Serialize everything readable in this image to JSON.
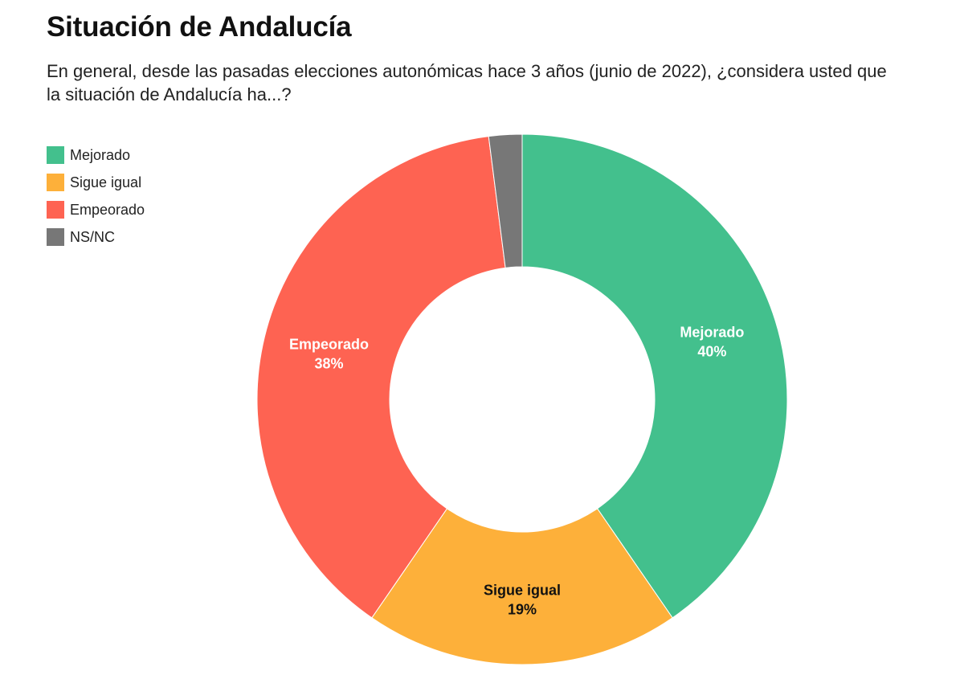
{
  "title": "Situación de Andalucía",
  "subtitle": "En general, desde las pasadas elecciones autonómicas hace 3 años (junio de 2022), ¿considera usted que la situación de Andalucía ha...?",
  "chart_data": {
    "type": "pie",
    "donut": true,
    "legend_position": "top-left",
    "slices": [
      {
        "label": "Mejorado",
        "value": 40,
        "display": "40%",
        "color": "#43c08d",
        "label_color": "#ffffff",
        "show_label": true
      },
      {
        "label": "Sigue igual",
        "value": 19,
        "display": "19%",
        "color": "#fdb03a",
        "label_color": "#111111",
        "show_label": true
      },
      {
        "label": "Empeorado",
        "value": 38,
        "display": "38%",
        "color": "#fe6352",
        "label_color": "#ffffff",
        "show_label": true
      },
      {
        "label": "NS/NC",
        "value": 2,
        "display": "2%",
        "color": "#777777",
        "label_color": "#ffffff",
        "show_label": false
      }
    ]
  }
}
